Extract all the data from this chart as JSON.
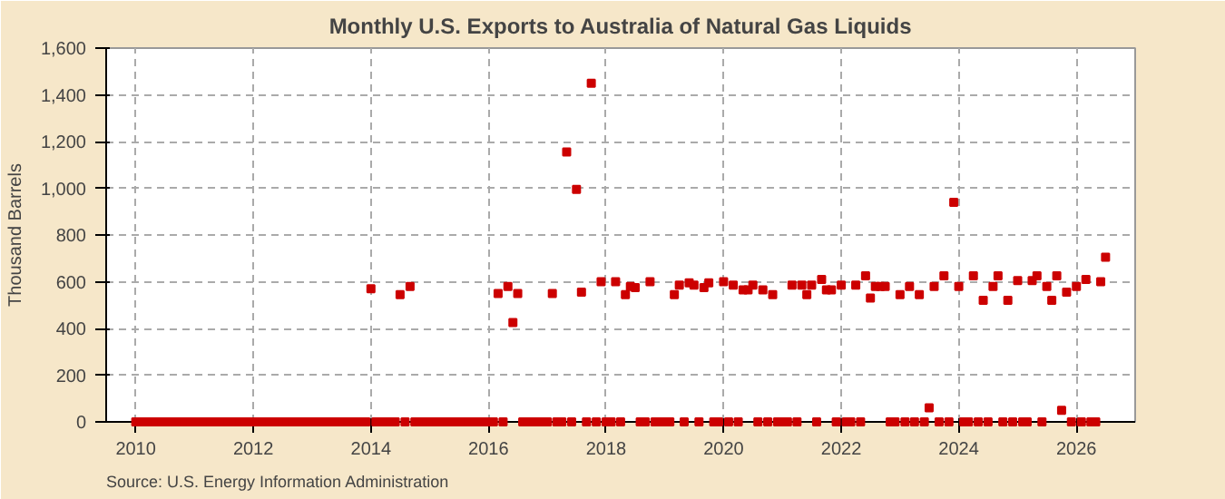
{
  "chart_data": {
    "type": "scatter",
    "title": "Monthly U.S. Exports to Australia of Natural Gas Liquids",
    "ylabel": "Thousand Barrels",
    "annotations": [
      "Source: U.S. Energy Information Administration"
    ],
    "x": [
      "2010-01",
      "2010-02",
      "2010-03",
      "2010-04",
      "2010-05",
      "2010-06",
      "2010-07",
      "2010-08",
      "2010-09",
      "2010-10",
      "2010-11",
      "2010-12",
      "2011-01",
      "2011-02",
      "2011-03",
      "2011-04",
      "2011-05",
      "2011-06",
      "2011-07",
      "2011-08",
      "2011-09",
      "2011-10",
      "2011-11",
      "2011-12",
      "2012-01",
      "2012-02",
      "2012-03",
      "2012-04",
      "2012-05",
      "2012-06",
      "2012-07",
      "2012-08",
      "2012-09",
      "2012-10",
      "2012-11",
      "2012-12",
      "2013-01",
      "2013-02",
      "2013-03",
      "2013-04",
      "2013-05",
      "2013-06",
      "2013-07",
      "2013-08",
      "2013-09",
      "2013-10",
      "2013-11",
      "2013-12",
      "2014-01",
      "2014-02",
      "2014-03",
      "2014-04",
      "2014-05",
      "2014-06",
      "2014-07",
      "2014-08",
      "2014-09",
      "2014-10",
      "2014-11",
      "2014-12",
      "2015-01",
      "2015-02",
      "2015-03",
      "2015-04",
      "2015-05",
      "2015-06",
      "2015-07",
      "2015-08",
      "2015-09",
      "2015-10",
      "2015-11",
      "2015-12",
      "2016-01",
      "2016-02",
      "2016-03",
      "2016-04",
      "2016-05",
      "2016-06",
      "2016-07",
      "2016-08",
      "2016-09",
      "2016-10",
      "2016-11",
      "2016-12",
      "2017-01",
      "2017-02",
      "2017-03",
      "2017-04",
      "2017-05",
      "2017-06",
      "2017-07",
      "2017-08",
      "2017-09",
      "2017-10",
      "2017-11",
      "2017-12",
      "2018-01",
      "2018-02",
      "2018-03",
      "2018-04",
      "2018-05",
      "2018-06",
      "2018-07",
      "2018-08",
      "2018-09",
      "2018-10",
      "2018-11",
      "2018-12",
      "2019-01",
      "2019-02",
      "2019-03",
      "2019-04",
      "2019-05",
      "2019-06",
      "2019-07",
      "2019-08",
      "2019-09",
      "2019-10",
      "2019-11",
      "2019-12",
      "2020-01",
      "2020-02",
      "2020-03",
      "2020-04",
      "2020-05",
      "2020-06",
      "2020-07",
      "2020-08",
      "2020-09",
      "2020-10",
      "2020-11",
      "2020-12",
      "2021-01",
      "2021-02",
      "2021-03",
      "2021-04",
      "2021-05",
      "2021-06",
      "2021-07",
      "2021-08",
      "2021-09",
      "2021-10",
      "2021-11",
      "2021-12",
      "2022-01",
      "2022-02",
      "2022-03",
      "2022-04",
      "2022-05",
      "2022-06",
      "2022-07",
      "2022-08",
      "2022-09",
      "2022-10",
      "2022-11",
      "2022-12",
      "2023-01",
      "2023-02",
      "2023-03",
      "2023-04",
      "2023-05",
      "2023-06",
      "2023-07",
      "2023-08",
      "2023-09",
      "2023-10",
      "2023-11",
      "2023-12",
      "2024-01",
      "2024-02",
      "2024-03",
      "2024-04",
      "2024-05",
      "2024-06",
      "2024-07",
      "2024-08",
      "2024-09",
      "2024-10",
      "2024-11",
      "2024-12",
      "2025-01",
      "2025-02",
      "2025-03",
      "2025-04",
      "2025-05",
      "2025-06",
      "2025-07",
      "2025-08",
      "2025-09",
      "2025-10",
      "2025-11",
      "2025-12",
      "2026-01",
      "2026-02",
      "2026-03",
      "2026-04",
      "2026-05",
      "2026-06",
      "2026-07"
    ],
    "series": [
      {
        "color": "#cc0000",
        "values": [
          0,
          0,
          0,
          0,
          0,
          0,
          0,
          0,
          0,
          0,
          0,
          0,
          0,
          0,
          0,
          0,
          0,
          0,
          0,
          0,
          0,
          0,
          0,
          0,
          0,
          0,
          0,
          0,
          0,
          0,
          0,
          0,
          0,
          0,
          0,
          0,
          0,
          0,
          0,
          0,
          0,
          0,
          0,
          0,
          0,
          0,
          0,
          0,
          570,
          0,
          0,
          0,
          0,
          0,
          545,
          0,
          580,
          0,
          0,
          0,
          0,
          0,
          0,
          0,
          0,
          0,
          0,
          0,
          0,
          0,
          0,
          0,
          0,
          0,
          550,
          0,
          580,
          425,
          550,
          0,
          0,
          0,
          0,
          0,
          0,
          550,
          0,
          0,
          1155,
          0,
          995,
          555,
          0,
          1450,
          0,
          600,
          0,
          0,
          600,
          0,
          545,
          580,
          575,
          0,
          0,
          600,
          0,
          0,
          0,
          0,
          545,
          585,
          0,
          595,
          585,
          0,
          575,
          595,
          0,
          0,
          600,
          0,
          585,
          0,
          565,
          565,
          585,
          0,
          565,
          0,
          545,
          0,
          0,
          0,
          585,
          0,
          585,
          545,
          585,
          0,
          610,
          565,
          565,
          0,
          585,
          0,
          0,
          585,
          0,
          625,
          530,
          580,
          580,
          580,
          0,
          0,
          545,
          0,
          580,
          0,
          545,
          0,
          60,
          580,
          0,
          625,
          0,
          940,
          580,
          0,
          0,
          625,
          0,
          520,
          0,
          580,
          625,
          0,
          520,
          0,
          605,
          0,
          0,
          605,
          625,
          0,
          580,
          520,
          625,
          50,
          555,
          0,
          580,
          0,
          610,
          0,
          0,
          600,
          705
        ]
      }
    ],
    "marker": "square",
    "xlim": [
      "2009-07",
      "2027-01"
    ],
    "xticks": [
      "2010",
      "2012",
      "2014",
      "2016",
      "2018",
      "2020",
      "2022",
      "2024",
      "2026"
    ],
    "ylim": [
      0,
      1600
    ],
    "yticks": [
      0,
      200,
      400,
      600,
      800,
      {
        "value": 1000,
        "label": "1,000"
      },
      {
        "value": 1200,
        "label": "1,200"
      },
      {
        "value": 1400,
        "label": "1,400"
      },
      {
        "value": 1600,
        "label": "1,600"
      }
    ],
    "grid": true
  }
}
